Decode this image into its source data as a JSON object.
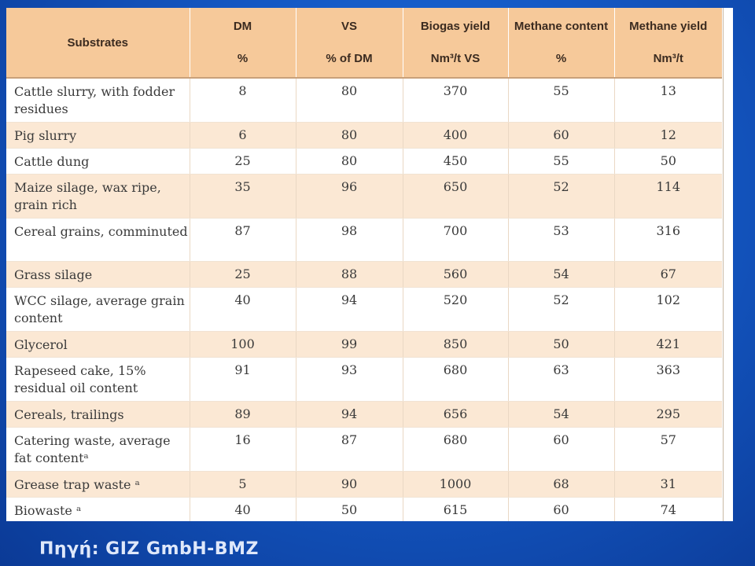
{
  "table": {
    "headers": [
      {
        "line1": "Substrates",
        "line2": ""
      },
      {
        "line1": "DM",
        "line2": "%"
      },
      {
        "line1": "VS",
        "line2": "% of DM"
      },
      {
        "line1": "Biogas yield",
        "line2": "Nm³/t VS"
      },
      {
        "line1": "Methane content",
        "line2": "%"
      },
      {
        "line1": "Methane yield",
        "line2": "Nm³/t"
      }
    ],
    "rows": [
      {
        "substrate": "Cattle slurry, with fodder residues",
        "dm": "8",
        "vs": "80",
        "biogas": "370",
        "methane_content": "55",
        "methane_yield": "13"
      },
      {
        "substrate": "Pig slurry",
        "dm": "6",
        "vs": "80",
        "biogas": "400",
        "methane_content": "60",
        "methane_yield": "12"
      },
      {
        "substrate": "Cattle dung",
        "dm": "25",
        "vs": "80",
        "biogas": "450",
        "methane_content": "55",
        "methane_yield": "50"
      },
      {
        "substrate": "Maize silage, wax ripe, grain rich",
        "dm": "35",
        "vs": "96",
        "biogas": "650",
        "methane_content": "52",
        "methane_yield": "114"
      },
      {
        "substrate": "Cereal grains, comminuted",
        "dm": "87",
        "vs": "98",
        "biogas": "700",
        "methane_content": "53",
        "methane_yield": "316"
      },
      {
        "substrate": "Grass silage",
        "dm": "25",
        "vs": "88",
        "biogas": "560",
        "methane_content": "54",
        "methane_yield": "67"
      },
      {
        "substrate": "WCC silage, average grain content",
        "dm": "40",
        "vs": "94",
        "biogas": "520",
        "methane_content": "52",
        "methane_yield": "102"
      },
      {
        "substrate": "Glycerol",
        "dm": "100",
        "vs": "99",
        "biogas": "850",
        "methane_content": "50",
        "methane_yield": "421"
      },
      {
        "substrate": "Rapeseed cake, 15% residual oil content",
        "dm": "91",
        "vs": "93",
        "biogas": "680",
        "methane_content": "63",
        "methane_yield": "363"
      },
      {
        "substrate": "Cereals, trailings",
        "dm": "89",
        "vs": "94",
        "biogas": "656",
        "methane_content": "54",
        "methane_yield": "295"
      },
      {
        "substrate": "Catering waste, average fat contentᵃ",
        "dm": "16",
        "vs": "87",
        "biogas": "680",
        "methane_content": "60",
        "methane_yield": "57"
      },
      {
        "substrate": "Grease trap waste ᵃ",
        "dm": "5",
        "vs": "90",
        "biogas": "1000",
        "methane_content": "68",
        "methane_yield": "31"
      },
      {
        "substrate": "Biowaste ᵃ",
        "dm": "40",
        "vs": "50",
        "biogas": "615",
        "methane_content": "60",
        "methane_yield": "74"
      }
    ],
    "row_heights": [
      56,
      33,
      33,
      56,
      55,
      33,
      56,
      33,
      56,
      33,
      56,
      33,
      31
    ]
  },
  "source": "Πηγή: GIZ GmbH-BMZ"
}
